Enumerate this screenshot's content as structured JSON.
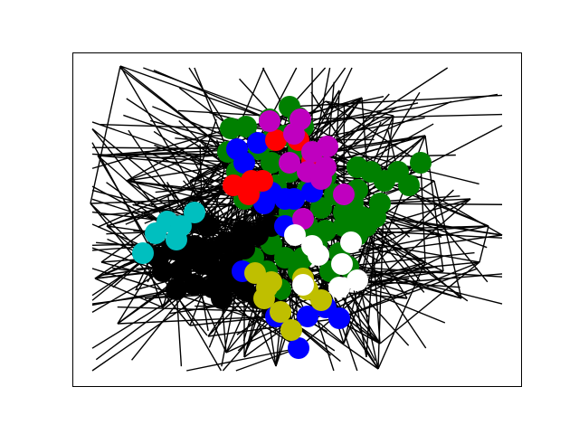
{
  "figure": {
    "background": "#ffffff",
    "axes_frame_color": "#000000",
    "ticks": false
  },
  "graph": {
    "edge_color": "#000000",
    "node_groups": [
      {
        "name": "green",
        "color": "#008000"
      },
      {
        "name": "black",
        "color": "#000000"
      },
      {
        "name": "blue",
        "color": "#0000ff"
      },
      {
        "name": "red",
        "color": "#ff0000"
      },
      {
        "name": "magenta",
        "color": "#bf00bf"
      },
      {
        "name": "cyan",
        "color": "#00bfbf"
      },
      {
        "name": "yellow",
        "color": "#bfbf00"
      },
      {
        "name": "white",
        "color": "#ffffff"
      }
    ]
  }
}
